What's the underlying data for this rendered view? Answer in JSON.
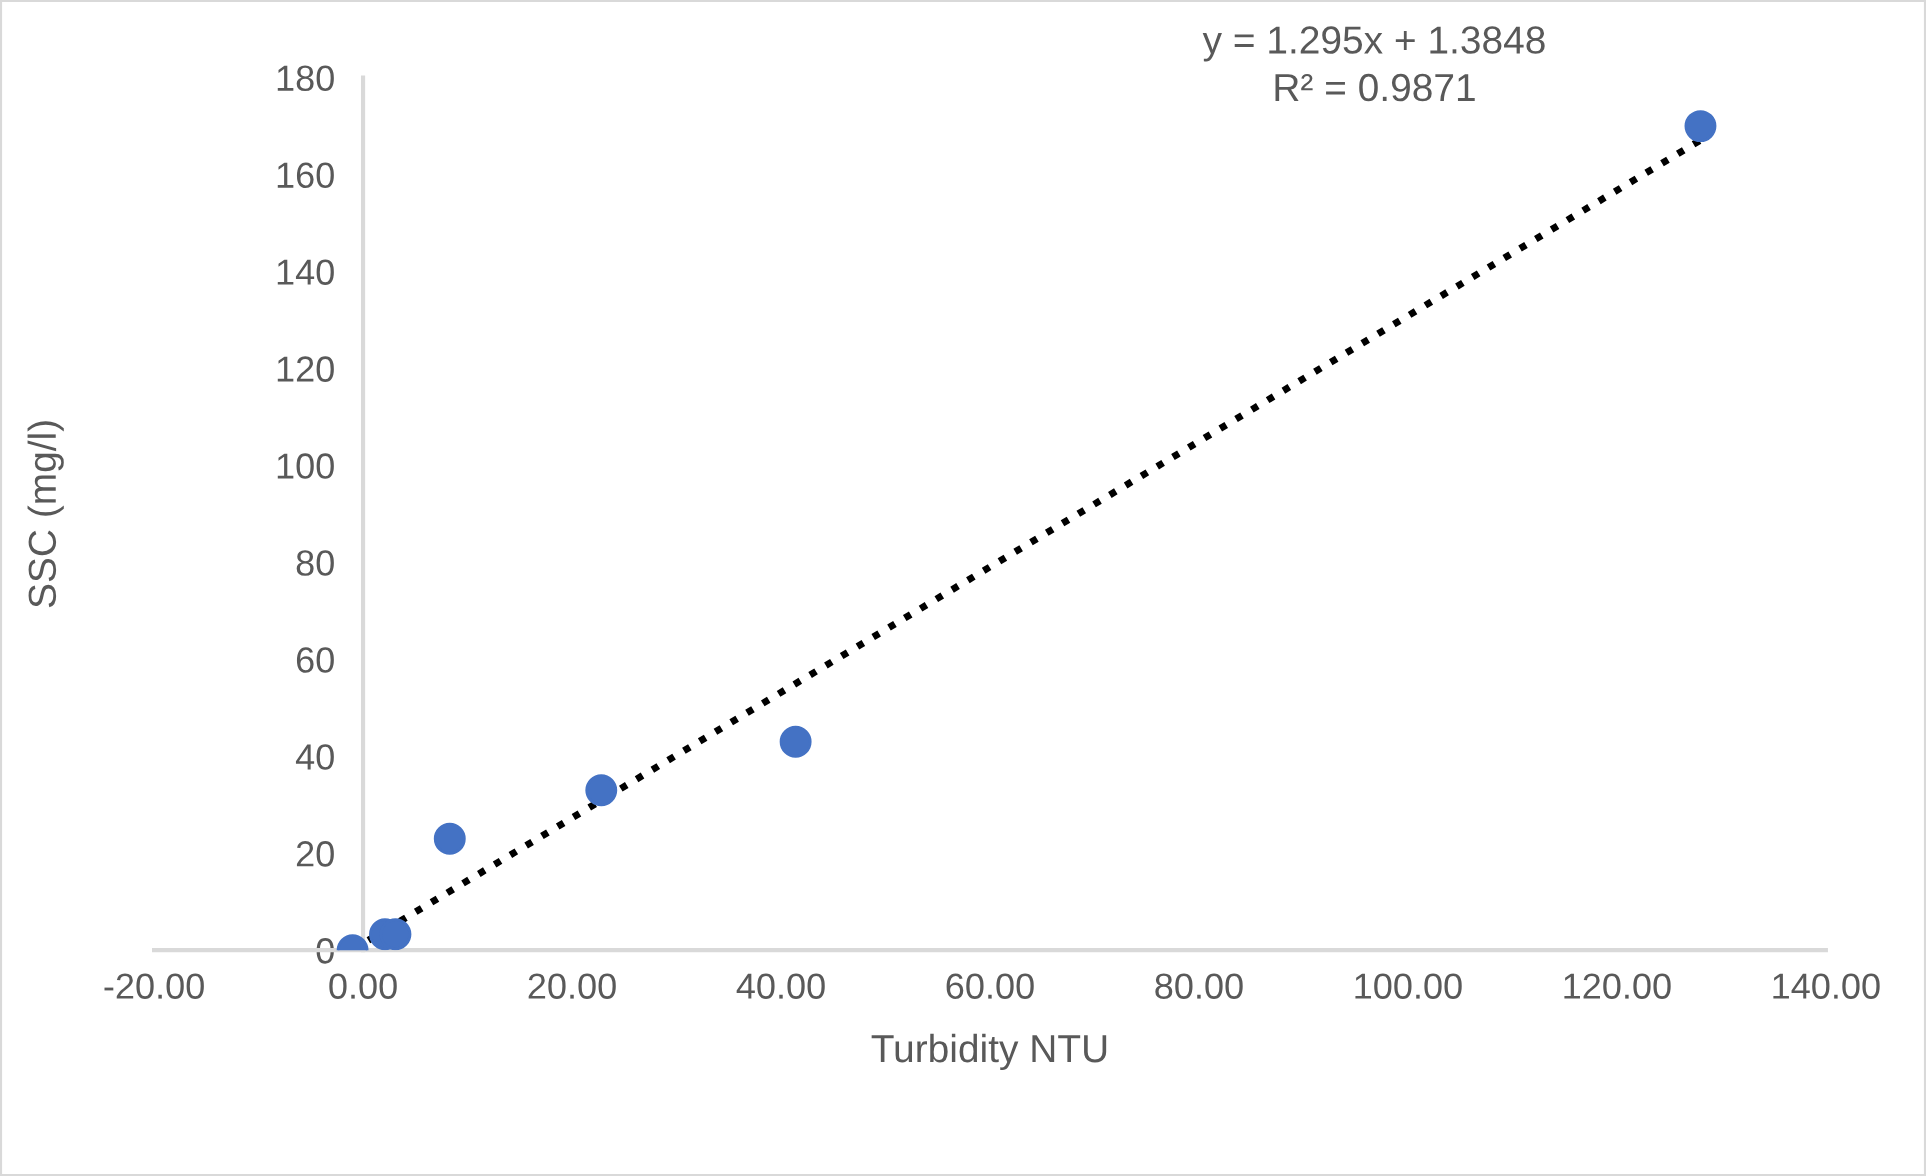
{
  "chart_data": {
    "type": "scatter",
    "xlabel": "Turbidity NTU",
    "ylabel": "SSC (mg/l)",
    "xlim": [
      -20,
      140
    ],
    "xticks": [
      {
        "value": -20,
        "label": "-20.00"
      },
      {
        "value": 0,
        "label": "0.00"
      },
      {
        "value": 20,
        "label": "20.00"
      },
      {
        "value": 40,
        "label": "40.00"
      },
      {
        "value": 60,
        "label": "60.00"
      },
      {
        "value": 80,
        "label": "80.00"
      },
      {
        "value": 100,
        "label": "100.00"
      },
      {
        "value": 120,
        "label": "120.00"
      },
      {
        "value": 140,
        "label": "140.00"
      }
    ],
    "ylim": [
      0,
      180
    ],
    "yticks": [
      0,
      20,
      40,
      60,
      80,
      100,
      120,
      140,
      160,
      180
    ],
    "grid": false,
    "legend": false,
    "marker": "circle",
    "series": [
      {
        "color": "#4472c4",
        "x": [
          -1,
          2.1,
          3.1,
          8.3,
          22.8,
          41.4,
          128
        ],
        "values": [
          0,
          3.3,
          3.3,
          23,
          33,
          43,
          170
        ]
      },
      {
        "type": "line",
        "marker": "none",
        "color": "#000000",
        "line_style": "dotted",
        "x": [
          -1,
          128
        ],
        "values": [
          0.1,
          167.1
        ]
      }
    ],
    "annotations": [
      "y = 1.295x + 1.3848\nR² = 0.9871"
    ]
  }
}
